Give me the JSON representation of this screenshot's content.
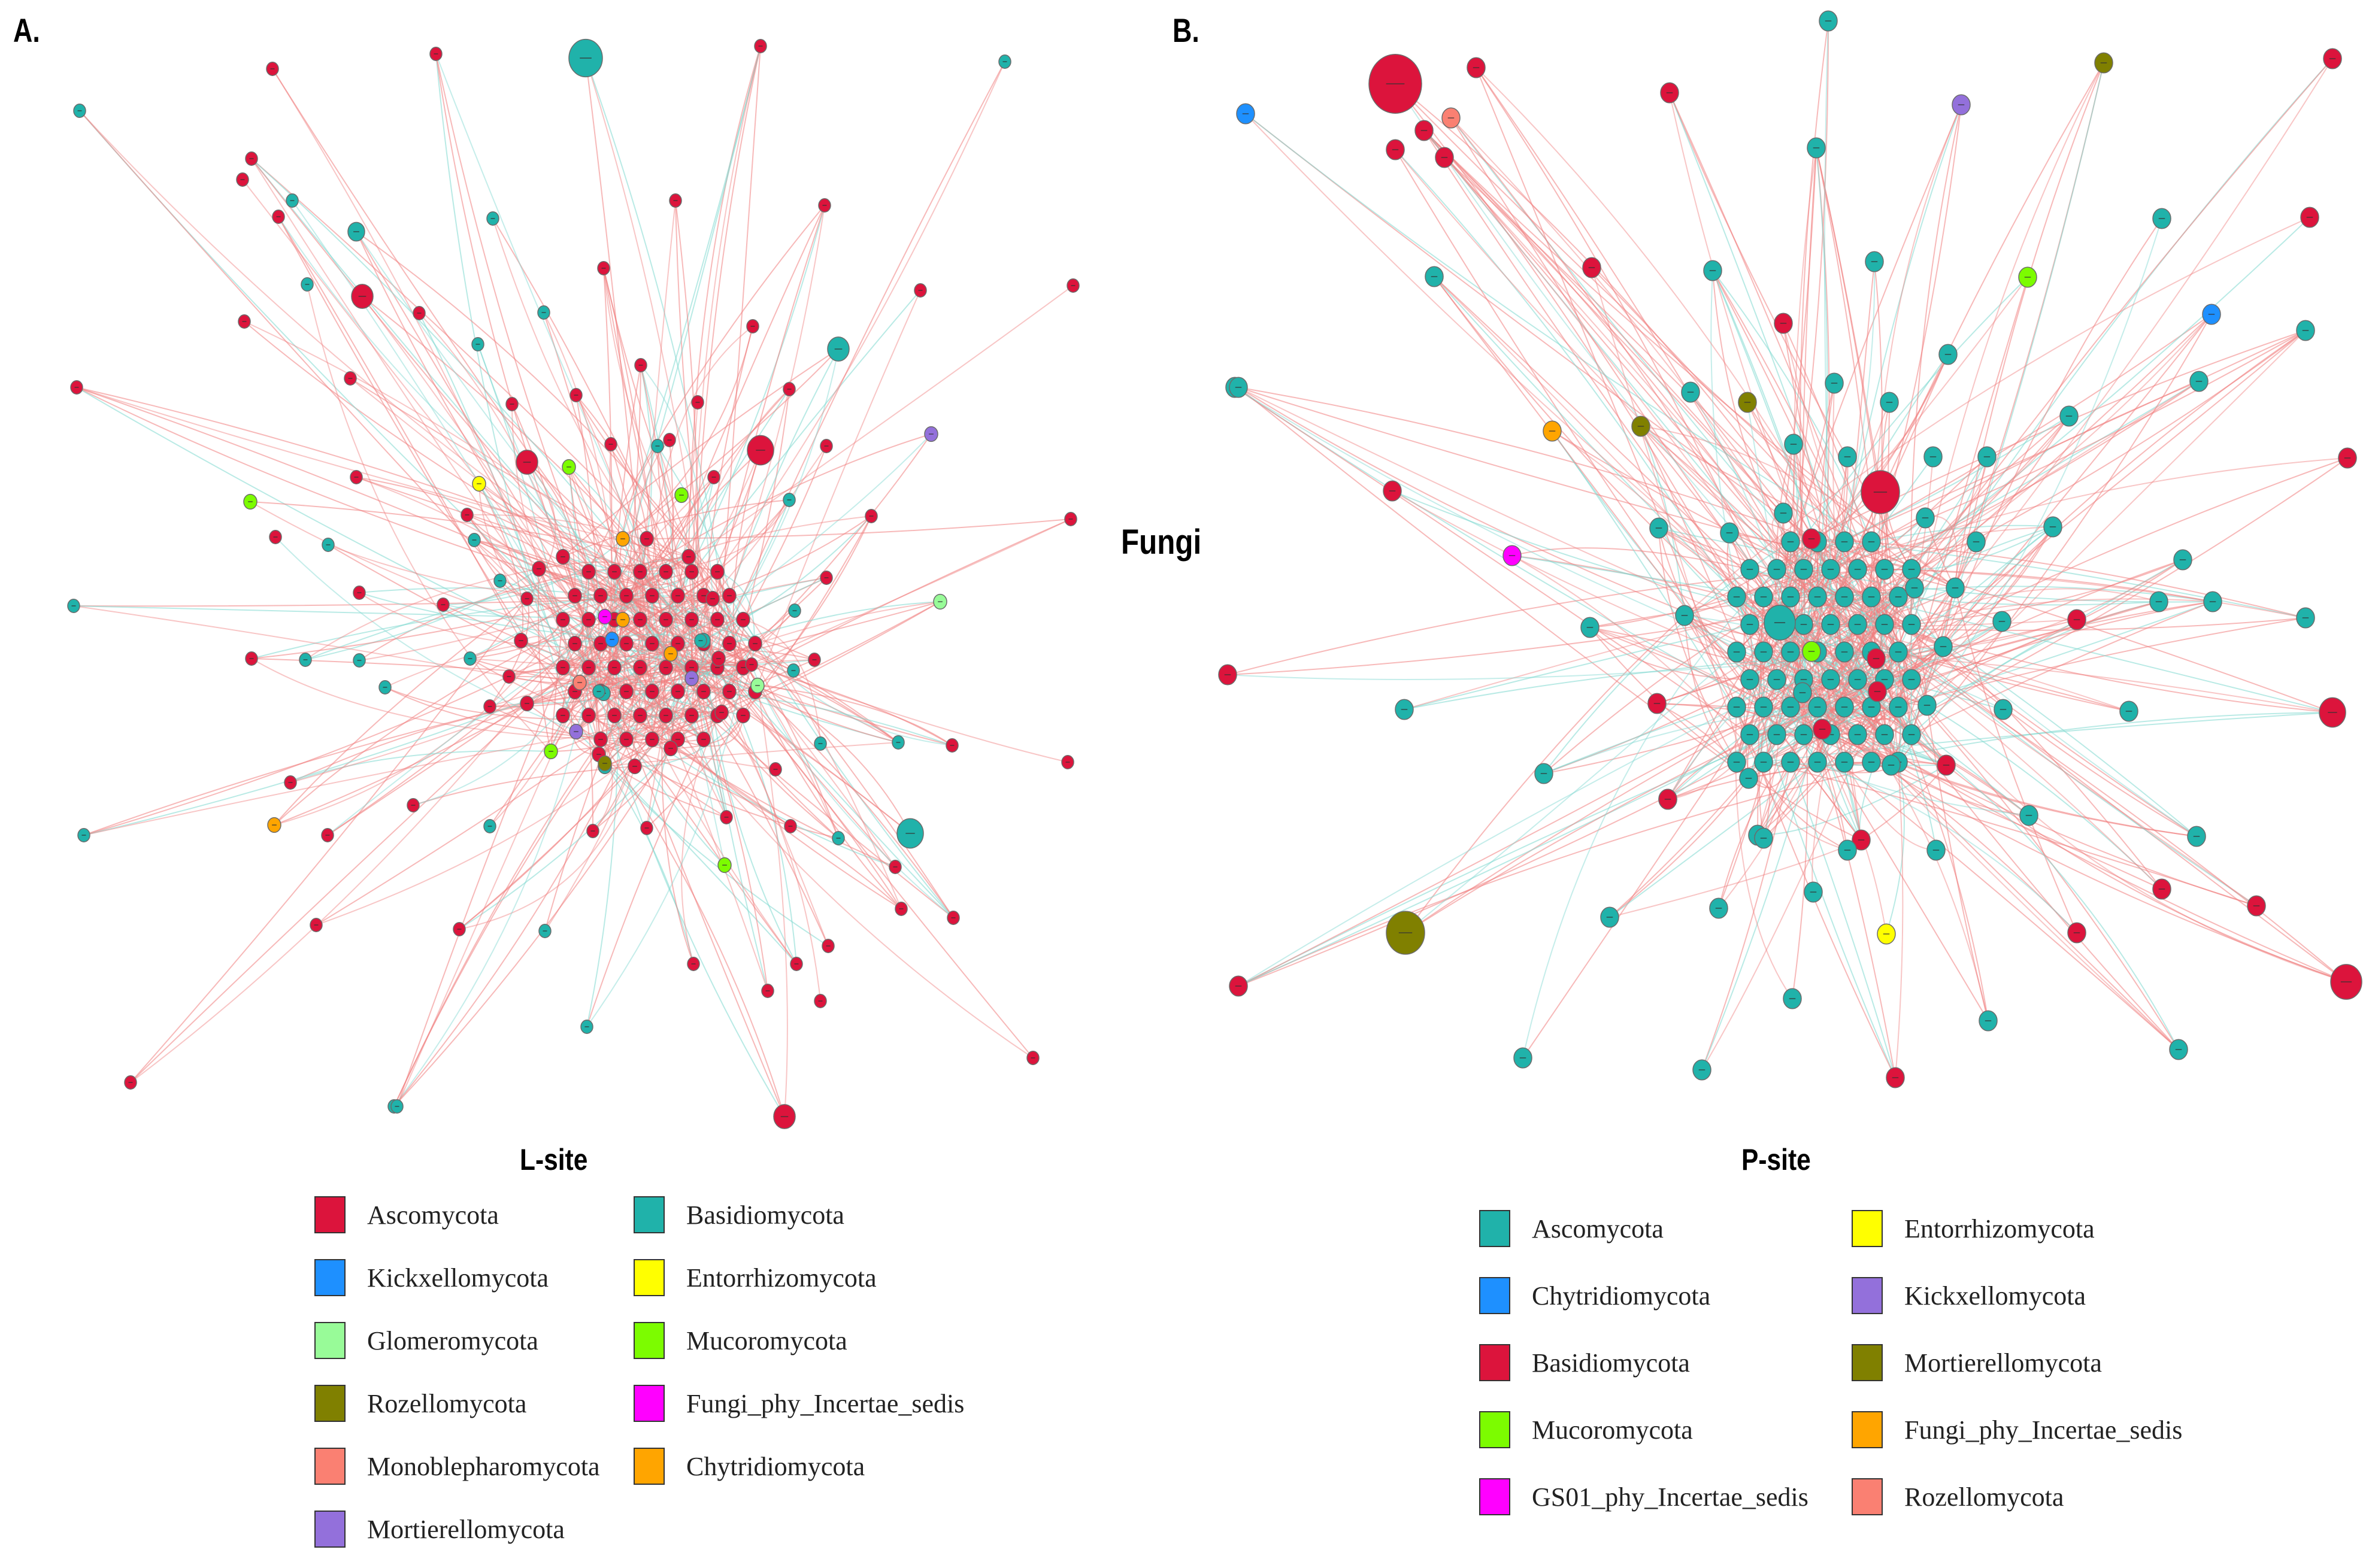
{
  "panel_a": {
    "label": "A.",
    "legend_title": "L-site",
    "legend": [
      {
        "name": "Ascomycota",
        "color": "#DC143C"
      },
      {
        "name": "Kickxellomycota",
        "color": "#1E90FF"
      },
      {
        "name": "Glomeromycota",
        "color": "#98FB98"
      },
      {
        "name": "Rozellomycota",
        "color": "#808000"
      },
      {
        "name": "Monoblepharomycota",
        "color": "#FA8072"
      },
      {
        "name": "Mortierellomycota",
        "color": "#9370DB"
      },
      {
        "name": "Basidiomycota",
        "color": "#20B2AA"
      },
      {
        "name": "Entorrhizomycota",
        "color": "#FFFF00"
      },
      {
        "name": "Mucoromycota",
        "color": "#7CFC00"
      },
      {
        "name": "Fungi_phy_Incertae_sedis",
        "color": "#FF00FF"
      },
      {
        "name": "Chytridiomycota",
        "color": "#FFA500"
      }
    ]
  },
  "panel_b": {
    "label": "B.",
    "legend_title": "P-site",
    "legend": [
      {
        "name": "Ascomycota",
        "color": "#20B2AA"
      },
      {
        "name": "Chytridiomycota",
        "color": "#1E90FF"
      },
      {
        "name": "Basidiomycota",
        "color": "#DC143C"
      },
      {
        "name": "Mucoromycota",
        "color": "#7CFC00"
      },
      {
        "name": "GS01_phy_Incertae_sedis",
        "color": "#FF00FF"
      },
      {
        "name": "Entorrhizomycota",
        "color": "#FFFF00"
      },
      {
        "name": "Kickxellomycota",
        "color": "#9370DB"
      },
      {
        "name": "Mortierellomycota",
        "color": "#808000"
      },
      {
        "name": "Fungi_phy_Incertae_sedis",
        "color": "#FFA500"
      },
      {
        "name": "Rozellomycota",
        "color": "#FA8072"
      }
    ]
  },
  "center_title": "Fungi",
  "edge_colors": {
    "positive": "#F08080",
    "negative": "#7FD8D0"
  }
}
